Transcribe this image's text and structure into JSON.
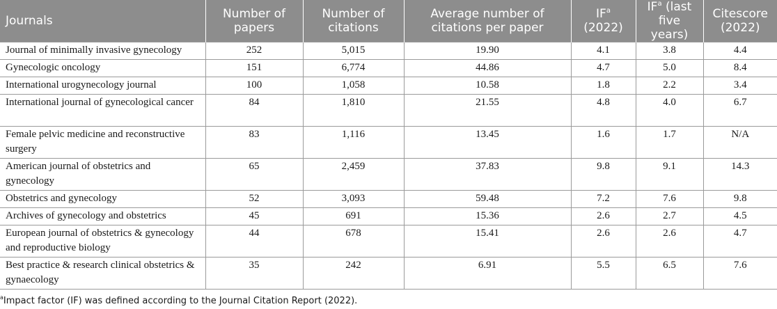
{
  "table": {
    "headers": {
      "journals": "Journals",
      "papers": "Number of papers",
      "citations": "Number of citations",
      "average": "Average number of citations per paper",
      "if_base": "IF",
      "if_sup": "a",
      "if_suffix": " (2022)",
      "if5_base": "IF",
      "if5_sup": "a",
      "if5_suffix": " (last five years)",
      "citescore": "Citescore (2022)"
    },
    "rows": [
      {
        "journal": "Journal of minimally invasive gynecology",
        "papers": "252",
        "citations": "5,015",
        "average": "19.90",
        "if": "4.1",
        "if5": "3.8",
        "citescore": "4.4"
      },
      {
        "journal": "Gynecologic oncology",
        "papers": "151",
        "citations": "6,774",
        "average": "44.86",
        "if": "4.7",
        "if5": "5.0",
        "citescore": "8.4"
      },
      {
        "journal": "International urogynecology journal",
        "papers": "100",
        "citations": "1,058",
        "average": "10.58",
        "if": "1.8",
        "if5": "2.2",
        "citescore": "3.4"
      },
      {
        "journal": "International journal of gynecological cancer",
        "papers": "84",
        "citations": "1,810",
        "average": "21.55",
        "if": "4.8",
        "if5": "4.0",
        "citescore": "6.7"
      },
      {
        "journal": "Female pelvic medicine and reconstructive surgery",
        "papers": "83",
        "citations": "1,116",
        "average": "13.45",
        "if": "1.6",
        "if5": "1.7",
        "citescore": "N/A"
      },
      {
        "journal": "American journal of obstetrics and gynecology",
        "papers": "65",
        "citations": "2,459",
        "average": "37.83",
        "if": "9.8",
        "if5": "9.1",
        "citescore": "14.3"
      },
      {
        "journal": "Obstetrics and gynecology",
        "papers": "52",
        "citations": "3,093",
        "average": "59.48",
        "if": "7.2",
        "if5": "7.6",
        "citescore": "9.8"
      },
      {
        "journal": "Archives of gynecology and obstetrics",
        "papers": "45",
        "citations": "691",
        "average": "15.36",
        "if": "2.6",
        "if5": "2.7",
        "citescore": "4.5"
      },
      {
        "journal": "European journal of obstetrics & gynecology and reproductive biology",
        "papers": "44",
        "citations": "678",
        "average": "15.41",
        "if": "2.6",
        "if5": "2.6",
        "citescore": "4.7"
      },
      {
        "journal": "Best practice & research clinical obstetrics & gynaecology",
        "papers": "35",
        "citations": "242",
        "average": "6.91",
        "if": "5.5",
        "if5": "6.5",
        "citescore": "7.6"
      }
    ]
  },
  "footnote": {
    "marker": "a",
    "text": "Impact factor (IF) was defined according to the Journal Citation Report (2022)."
  }
}
